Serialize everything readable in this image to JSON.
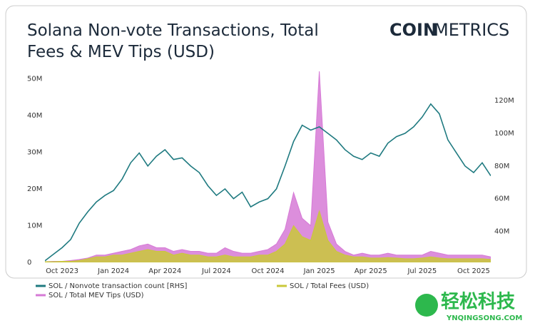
{
  "chart_data": {
    "type": "line",
    "title": "Solana Non-vote Transactions, Total Fees & MEV Tips (USD)",
    "logo_bold": "COIN",
    "logo_light": "METRICS",
    "watermark": "轻松科技",
    "watermark_url": "YNQINGSONG.COM",
    "categories": [
      null,
      null,
      "Oct 2023",
      null,
      null,
      null,
      null,
      null,
      "Jan 2024",
      null,
      null,
      null,
      null,
      null,
      "Apr 2024",
      null,
      null,
      null,
      null,
      null,
      "Jul 2024",
      null,
      null,
      null,
      null,
      null,
      "Oct 2024",
      null,
      null,
      null,
      null,
      null,
      "Jan 2025",
      null,
      null,
      null,
      null,
      null,
      "Apr 2025",
      null,
      null,
      null,
      null,
      null,
      "Jul 2025",
      null,
      null,
      null,
      null,
      null,
      "Oct 2025",
      null,
      null
    ],
    "series": [
      {
        "name": "SOL / Nonvote transaction count [RHS]",
        "color": "#1f7a80",
        "type": "line",
        "axis": "y2",
        "values": [
          22,
          26,
          30,
          35,
          45,
          52,
          58,
          62,
          65,
          72,
          82,
          88,
          80,
          86,
          90,
          84,
          85,
          80,
          76,
          68,
          62,
          66,
          60,
          64,
          55,
          58,
          60,
          66,
          80,
          95,
          105,
          102,
          104,
          100,
          96,
          90,
          86,
          84,
          88,
          86,
          94,
          98,
          100,
          104,
          110,
          118,
          112,
          96,
          88,
          80,
          76,
          82,
          74
        ]
      },
      {
        "name": "SOL / Total Fees (USD)",
        "color": "#c9c83a",
        "type": "area",
        "values": [
          0.2,
          0.2,
          0.3,
          0.3,
          0.5,
          1,
          1.5,
          1.5,
          2,
          2,
          2.5,
          3,
          3.5,
          3,
          3,
          2,
          2.5,
          2,
          2,
          1.5,
          1.5,
          2,
          1.5,
          1.5,
          1.5,
          2,
          2,
          3,
          5,
          10,
          7,
          6,
          14,
          6,
          3,
          2,
          1.5,
          1.5,
          1.2,
          1.2,
          1.3,
          1.2,
          1,
          1,
          1.2,
          1.5,
          1.2,
          1,
          1,
          1,
          1,
          1,
          0.8
        ]
      },
      {
        "name": "SOL / Total MEV Tips (USD)",
        "color": "#d67ad6",
        "type": "area",
        "values": [
          0.2,
          0.3,
          0.3,
          0.5,
          0.8,
          1.2,
          2,
          2,
          2.5,
          3,
          3.5,
          4.5,
          5,
          4,
          4,
          3,
          3.5,
          3,
          3,
          2.5,
          2.5,
          4,
          3,
          2.5,
          2.5,
          3,
          3.5,
          5,
          9,
          19,
          12,
          10,
          52,
          11,
          5,
          3,
          2,
          2.5,
          2,
          2,
          2.5,
          2,
          2,
          2,
          2,
          3,
          2.5,
          2,
          2,
          2,
          2,
          2,
          1.5
        ]
      }
    ],
    "ylim": [
      0,
      52
    ],
    "yticks": [
      {
        "value": 0,
        "label": "0"
      },
      {
        "value": 10,
        "label": "10M"
      },
      {
        "value": 20,
        "label": "20M"
      },
      {
        "value": 30,
        "label": "30M"
      },
      {
        "value": 40,
        "label": "40M"
      },
      {
        "value": 50,
        "label": "50M"
      }
    ],
    "y2lim": [
      21,
      138
    ],
    "y2ticks": [
      {
        "value": 40,
        "label": "40M"
      },
      {
        "value": 60,
        "label": "60M"
      },
      {
        "value": 80,
        "label": "80M"
      },
      {
        "value": 100,
        "label": "100M"
      },
      {
        "value": 120,
        "label": "120M"
      }
    ]
  }
}
